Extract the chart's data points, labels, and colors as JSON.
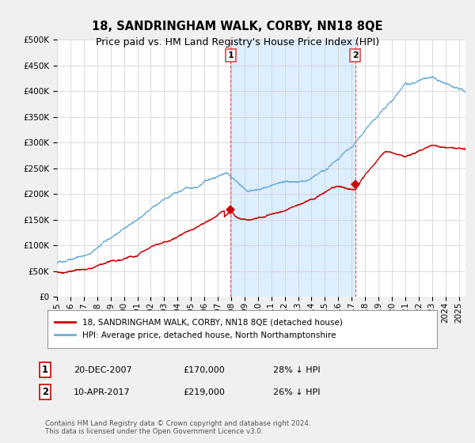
{
  "title": "18, SANDRINGHAM WALK, CORBY, NN18 8QE",
  "subtitle": "Price paid vs. HM Land Registry's House Price Index (HPI)",
  "ylim": [
    0,
    500000
  ],
  "yticks": [
    0,
    50000,
    100000,
    150000,
    200000,
    250000,
    300000,
    350000,
    400000,
    450000,
    500000
  ],
  "xlim_start": 1995.0,
  "xlim_end": 2025.5,
  "hpi_color": "#6baed6",
  "price_color": "#cc0000",
  "marker1_x": 2007.97,
  "marker1_y": 170000,
  "marker2_x": 2017.27,
  "marker2_y": 219000,
  "legend_entry1": "18, SANDRINGHAM WALK, CORBY, NN18 8QE (detached house)",
  "legend_entry2": "HPI: Average price, detached house, North Northamptonshire",
  "footnote": "Contains HM Land Registry data © Crown copyright and database right 2024.\nThis data is licensed under the Open Government Licence v3.0.",
  "bg_color": "#f0f0f0",
  "plot_bg_color": "#ffffff",
  "grid_color": "#cccccc",
  "vline_color": "#dd4444",
  "shade_color": "#ddeeff",
  "title_fontsize": 10.5,
  "tick_fontsize": 7.5
}
